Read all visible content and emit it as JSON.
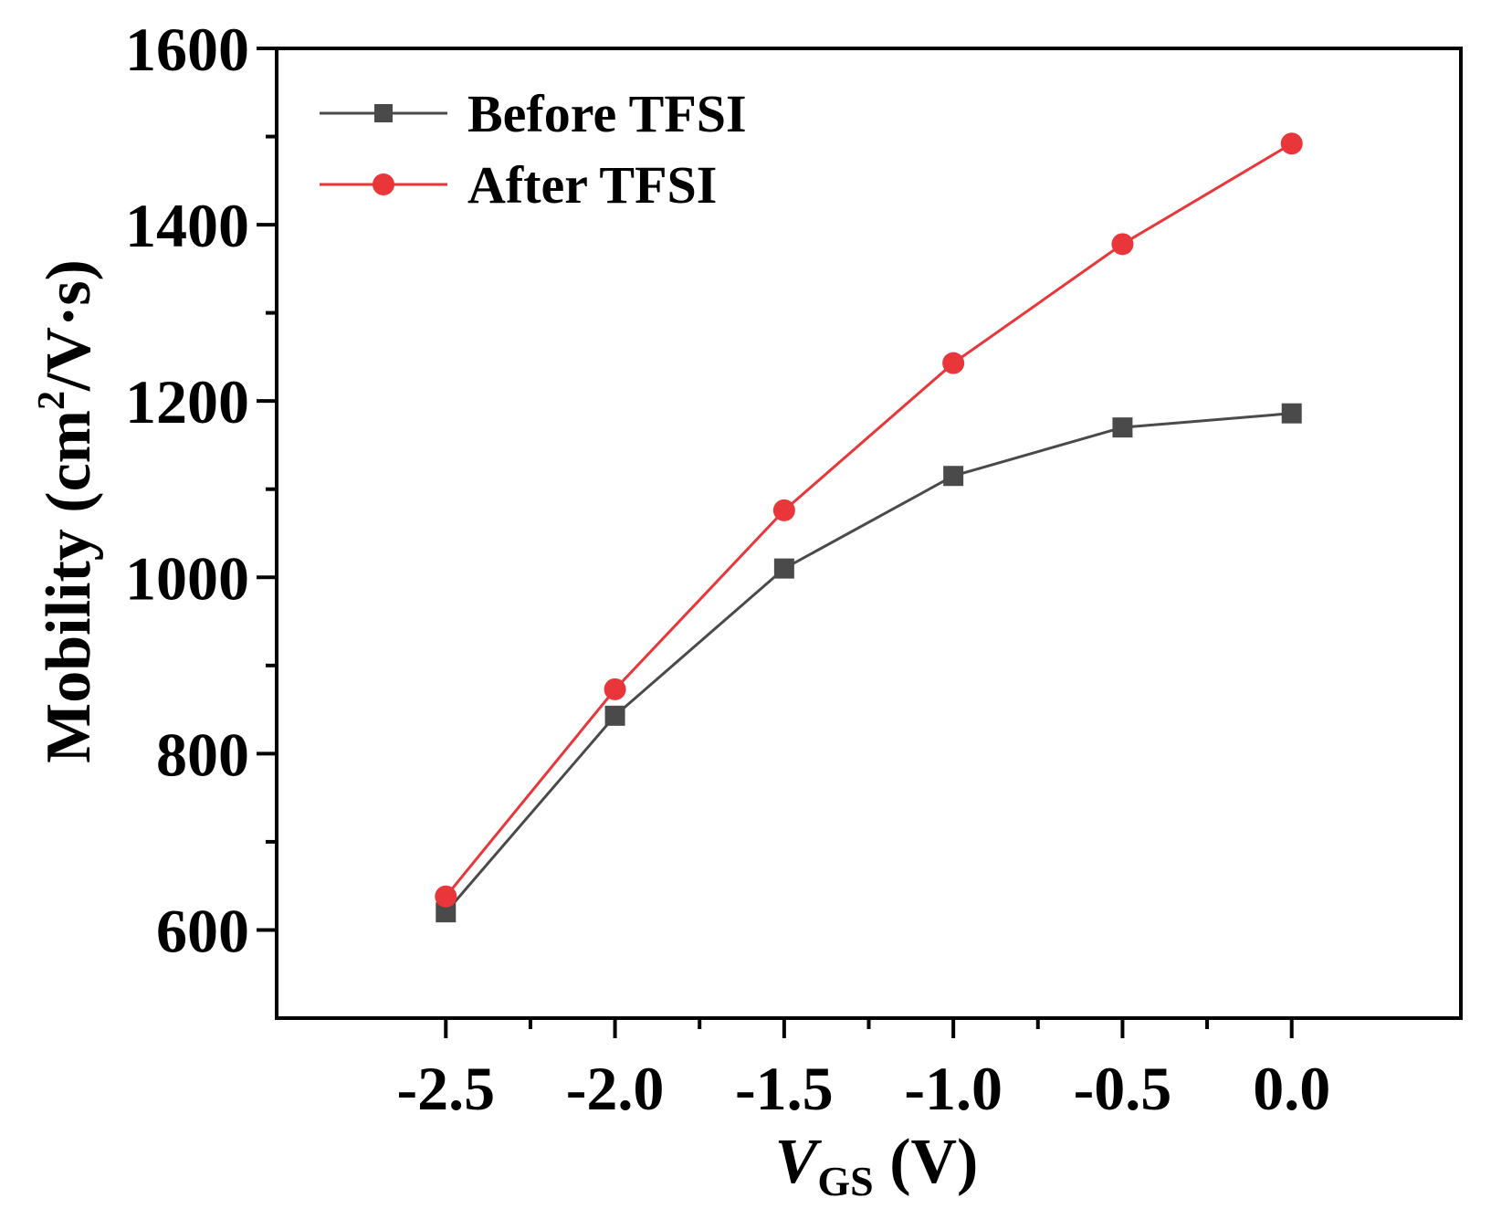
{
  "chart_data": {
    "type": "line",
    "title": "",
    "xlabel": {
      "var": "V",
      "sub": "GS",
      "unit": " (V)"
    },
    "ylabel": {
      "main": "Mobility (cm",
      "sup": "2",
      "tail": "/V·s)"
    },
    "xlim": [
      -3.0,
      0.5
    ],
    "ylim": [
      500,
      1600
    ],
    "x": [
      -2.5,
      -2.0,
      -1.5,
      -1.0,
      -0.5,
      0.0
    ],
    "xticks": [
      -2.5,
      -2.0,
      -1.5,
      -1.0,
      -0.5,
      0.0
    ],
    "xtick_labels": [
      "-2.5",
      "-2.0",
      "-1.5",
      "-1.0",
      "-0.5",
      "0.0"
    ],
    "yticks": [
      600,
      800,
      1000,
      1200,
      1400,
      1600
    ],
    "ytick_labels": [
      "600",
      "800",
      "1000",
      "1200",
      "1400",
      "1600"
    ],
    "grid": false,
    "legend_position": "top-left",
    "series": [
      {
        "name": "Before TFSI",
        "color": "#4a4a4a",
        "marker": "square",
        "values": [
          620,
          843,
          1010,
          1115,
          1170,
          1186
        ]
      },
      {
        "name": "After TFSI",
        "color": "#e8363a",
        "marker": "circle",
        "values": [
          638,
          873,
          1076,
          1243,
          1378,
          1492
        ]
      }
    ]
  }
}
